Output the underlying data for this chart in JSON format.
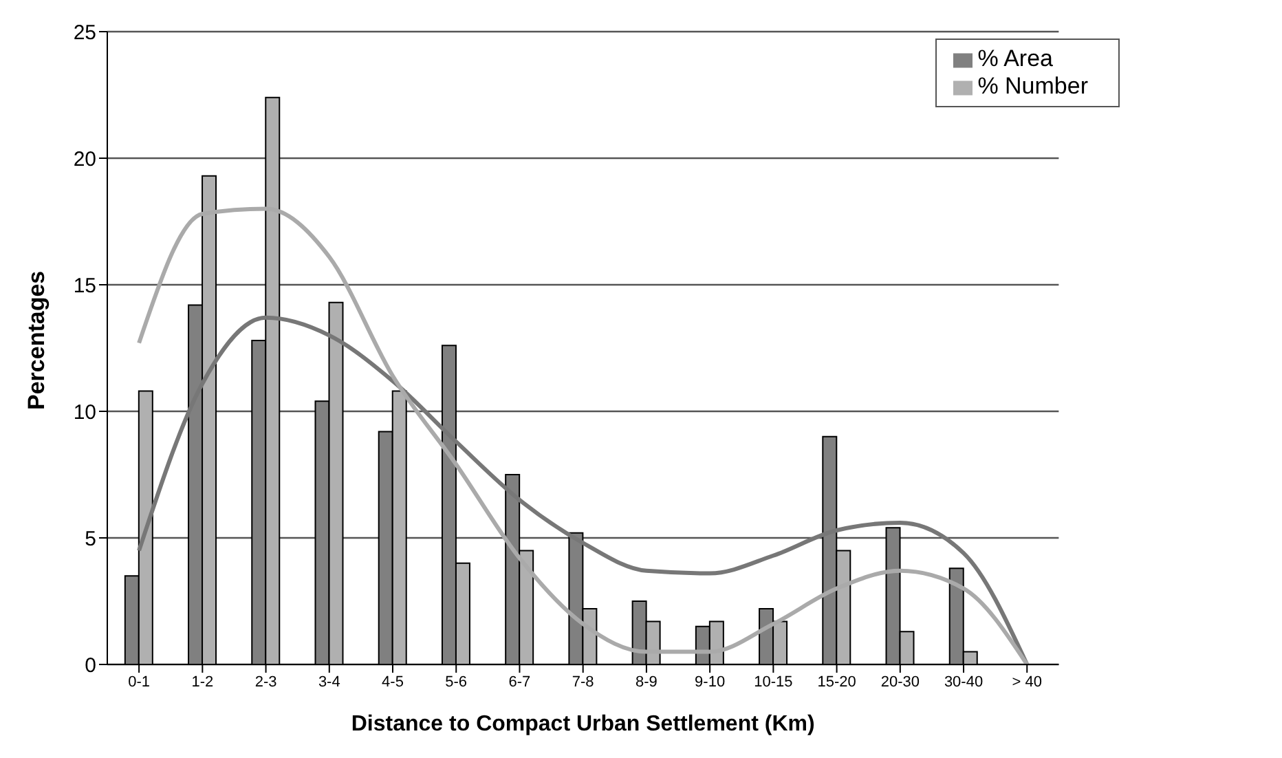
{
  "chart_data": {
    "type": "bar",
    "xlabel": "Distance to Compact Urban Settlement (Km)",
    "ylabel": "Percentages",
    "categories": [
      "0-1",
      "1-2",
      "2-3",
      "3-4",
      "4-5",
      "5-6",
      "6-7",
      "7-8",
      "8-9",
      "9-10",
      "10-15",
      "15-20",
      "20-30",
      "30-40",
      "> 40"
    ],
    "series": [
      {
        "name": "% Area",
        "color": "#808080",
        "values": [
          3.5,
          14.2,
          12.8,
          10.4,
          9.2,
          12.6,
          7.5,
          5.2,
          2.5,
          1.5,
          2.2,
          9.0,
          5.4,
          3.8,
          0
        ]
      },
      {
        "name": "% Number",
        "color": "#b0b0b0",
        "values": [
          10.8,
          19.3,
          22.4,
          14.3,
          10.8,
          4.0,
          4.5,
          2.2,
          1.7,
          1.7,
          1.7,
          4.5,
          1.3,
          0.5,
          0
        ]
      },
      {
        "type": "line",
        "color": "#777777",
        "values": [
          4.5,
          11.1,
          13.7,
          13.0,
          11.2,
          8.8,
          6.5,
          4.8,
          3.7,
          3.6,
          4.3,
          5.3,
          5.6,
          4.4,
          0
        ]
      },
      {
        "type": "line",
        "color": "#aaaaaa",
        "values": [
          12.7,
          17.8,
          18.0,
          16.1,
          11.4,
          7.9,
          4.2,
          1.6,
          0.5,
          0.5,
          1.6,
          3.0,
          3.7,
          3.0,
          0
        ]
      }
    ],
    "ylim": [
      0,
      25
    ],
    "yticks": [
      0,
      5,
      10,
      15,
      20,
      25
    ],
    "grid": "y",
    "legend": "top right"
  }
}
